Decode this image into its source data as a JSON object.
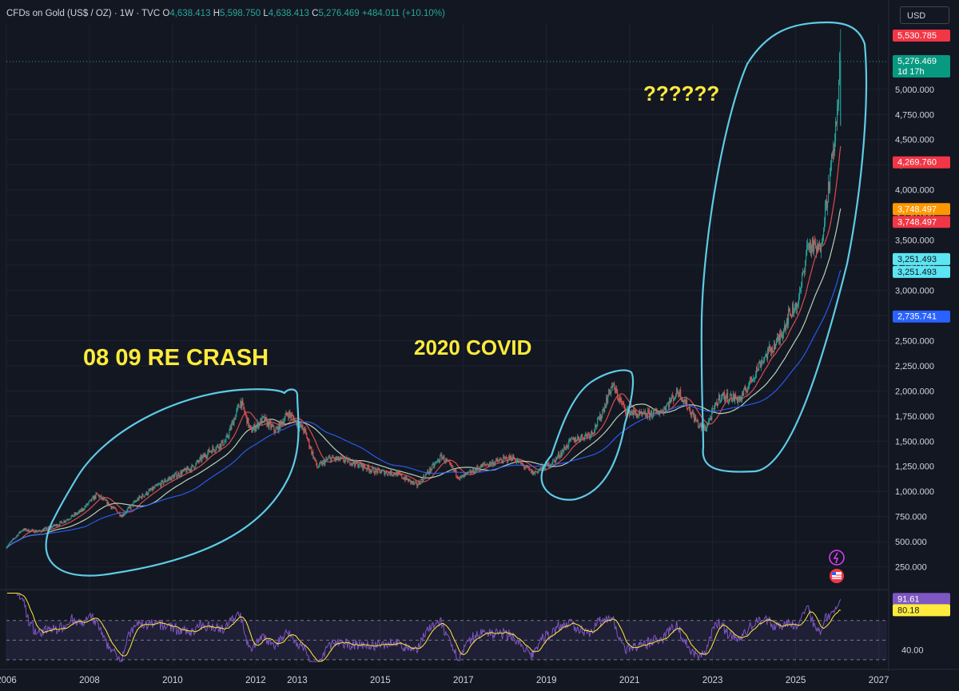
{
  "header": {
    "symbol": "CFDs on Gold (US$ / OZ)",
    "interval": "1W",
    "source": "TVC",
    "open_label": "O",
    "open": "4,638.413",
    "high_label": "H",
    "high": "5,598.750",
    "low_label": "L",
    "low": "4,638.413",
    "close_label": "C",
    "close": "5,276.469",
    "change": "+484.011 (+10.10%)"
  },
  "currency_button": "USD",
  "annotations": {
    "crash": "08 09 RE CRASH",
    "covid": "2020 COVID",
    "question": "??????"
  },
  "price_badges": [
    {
      "text": "5,530.785",
      "value": 5530.785,
      "color": "#f23645"
    },
    {
      "text": "5,276.469",
      "sub": "1d 17h",
      "value": 5276.469,
      "color": "#089981"
    },
    {
      "text": "4,269.760",
      "value": 4269.76,
      "color": "#f23645"
    },
    {
      "text": "3,748.497",
      "value": 3748.497,
      "color": "#ff9800",
      "nudge": -7
    },
    {
      "text": "3,748.497",
      "value": 3748.497,
      "color": "#f23645",
      "nudge": 9
    },
    {
      "text": "3,251.493",
      "value": 3251.493,
      "color": "#5ce5f2",
      "dark": true,
      "nudge": -7
    },
    {
      "text": "3,251.493",
      "value": 3251.493,
      "color": "#5ce5f2",
      "dark": true,
      "nudge": 9
    },
    {
      "text": "2,735.741",
      "value": 2735.741,
      "color": "#2962ff"
    }
  ],
  "rsi_badges": [
    {
      "text": "91.61",
      "color": "#7e57c2"
    },
    {
      "text": "80.18",
      "color": "#ffeb3b",
      "dark": true
    }
  ],
  "colors": {
    "up": "#26a69a",
    "down": "#ef5350",
    "ma_fast": "#ef5350",
    "ma_mid": "#c8e6c9",
    "ma_slow": "#2962ff",
    "annotation": "#ffeb3b",
    "circle": "#5ecbe6",
    "rsi_line": "#7e57c2",
    "rsi_ma": "#ffeb3b"
  },
  "chart_data": {
    "type": "candlestick",
    "instrument": "CFDs on Gold (US$ / OZ)",
    "interval": "1W",
    "y_axis_ticks": [
      250,
      500,
      750,
      1000,
      1250,
      1500,
      1750,
      2000,
      2250,
      2500,
      2750,
      3000,
      3250,
      3500,
      3750,
      4000,
      4250,
      4500,
      4750,
      5000
    ],
    "y_tick_labels": [
      "250.000",
      "500.000",
      "750.000",
      "1,000.000",
      "1,250.000",
      "1,500.000",
      "1,750.000",
      "2,000.000",
      "2,250.000",
      "2,500.000",
      "2,750.000",
      "3,000.000",
      "3,250.000",
      "3,500.000",
      "3,750.000",
      "4,000.000",
      "4,250.000",
      "4,500.000",
      "4,750.000",
      "5,000.000"
    ],
    "ylim": [
      40,
      5650
    ],
    "x_axis_ticks": [
      2006,
      2008,
      2010,
      2012,
      2013,
      2015,
      2017,
      2019,
      2021,
      2023,
      2025,
      2027
    ],
    "x_tick_labels": [
      "2006",
      "2008",
      "2010",
      "2012",
      "2013",
      "2015",
      "2017",
      "2019",
      "2021",
      "2023",
      "2025",
      "2027"
    ],
    "xlim": [
      2006.0,
      2027.2
    ],
    "price_path": [
      [
        2006.0,
        440
      ],
      [
        2006.4,
        620
      ],
      [
        2006.8,
        600
      ],
      [
        2007.3,
        680
      ],
      [
        2007.8,
        800
      ],
      [
        2008.2,
        970
      ],
      [
        2008.8,
        760
      ],
      [
        2009.2,
        930
      ],
      [
        2009.9,
        1120
      ],
      [
        2010.5,
        1240
      ],
      [
        2010.9,
        1400
      ],
      [
        2011.3,
        1500
      ],
      [
        2011.66,
        1900
      ],
      [
        2011.9,
        1600
      ],
      [
        2012.2,
        1720
      ],
      [
        2012.5,
        1600
      ],
      [
        2012.8,
        1780
      ],
      [
        2013.2,
        1600
      ],
      [
        2013.5,
        1240
      ],
      [
        2013.8,
        1330
      ],
      [
        2014.3,
        1300
      ],
      [
        2014.9,
        1200
      ],
      [
        2015.4,
        1180
      ],
      [
        2015.9,
        1060
      ],
      [
        2016.5,
        1350
      ],
      [
        2016.95,
        1130
      ],
      [
        2017.5,
        1260
      ],
      [
        2018.2,
        1340
      ],
      [
        2018.7,
        1180
      ],
      [
        2019.2,
        1300
      ],
      [
        2019.6,
        1500
      ],
      [
        2020.1,
        1580
      ],
      [
        2020.3,
        1720
      ],
      [
        2020.6,
        2060
      ],
      [
        2020.9,
        1820
      ],
      [
        2021.3,
        1750
      ],
      [
        2021.8,
        1800
      ],
      [
        2022.2,
        2000
      ],
      [
        2022.7,
        1650
      ],
      [
        2022.85,
        1630
      ],
      [
        2023.2,
        1950
      ],
      [
        2023.7,
        1920
      ],
      [
        2024.2,
        2300
      ],
      [
        2024.6,
        2500
      ],
      [
        2024.85,
        2750
      ],
      [
        2025.1,
        2900
      ],
      [
        2025.3,
        3450
      ],
      [
        2025.6,
        3400
      ],
      [
        2025.8,
        4000
      ],
      [
        2025.9,
        4300
      ],
      [
        2026.0,
        4650
      ],
      [
        2026.08,
        5276.469
      ]
    ],
    "last": {
      "open": 4638.413,
      "high": 5598.75,
      "low": 4638.413,
      "close": 5276.469,
      "change": 484.011,
      "change_pct": 10.1
    },
    "rsi": {
      "label_ticks": [
        40
      ],
      "tick_labels": [
        "40.00"
      ],
      "levels": [
        30,
        50,
        70
      ],
      "ylim": [
        25,
        100
      ],
      "current_rsi": 91.61,
      "current_ma": 80.18
    }
  }
}
